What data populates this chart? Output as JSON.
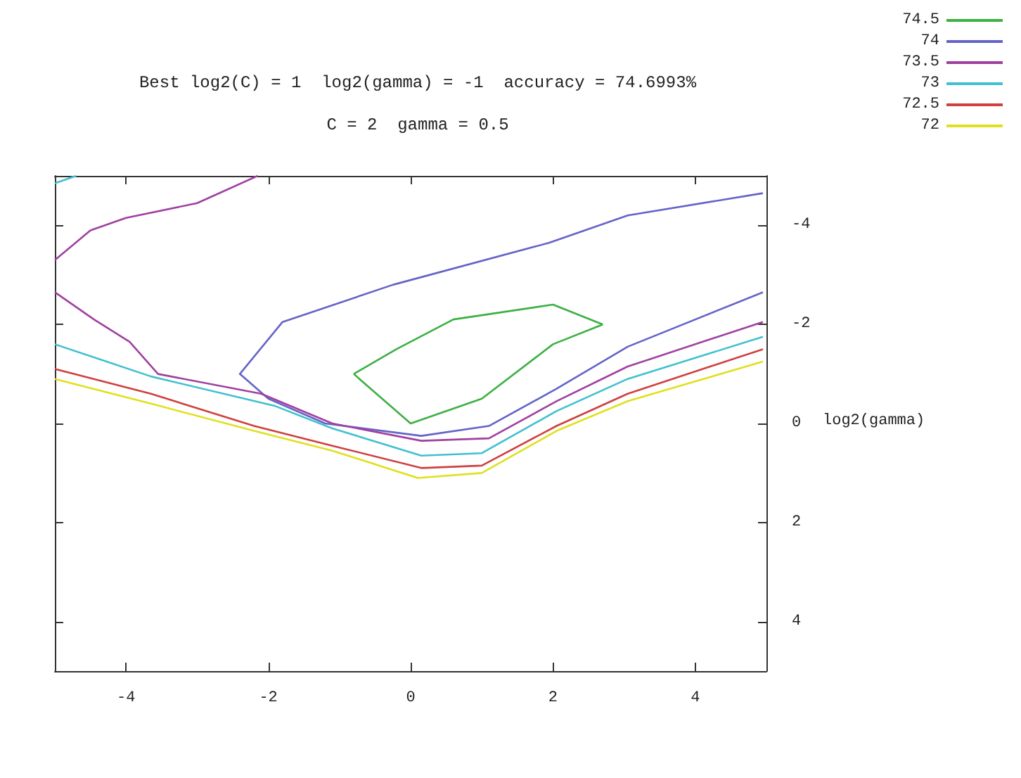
{
  "chart_data": {
    "type": "line",
    "title": "Best log2(C) = 1  log2(gamma) = -1  accuracy = 74.6993%",
    "subtitle": "C = 2  gamma = 0.5",
    "ylabel": "log2(gamma)",
    "xlim": [
      -5,
      5
    ],
    "xticks": [
      -4,
      -2,
      0,
      2,
      4
    ],
    "ylim": [
      5,
      -5
    ],
    "yticks": [
      -4,
      -2,
      0,
      2,
      4
    ],
    "grid": false,
    "legend": "top right",
    "marker": "none",
    "line_style": "solid",
    "series": [
      {
        "name": "74.5",
        "color": "#3cb043",
        "x": [
          -0.8,
          0,
          1,
          2,
          2.7,
          null,
          2.7,
          2,
          0.6,
          -0.2,
          -0.8
        ],
        "values": [
          -1,
          0,
          -0.5,
          -1.6,
          -2,
          null,
          -2,
          -2.4,
          -2.1,
          -1.5,
          -1
        ]
      },
      {
        "name": "74",
        "color": "#6464c8",
        "x": [
          4.95,
          3.05,
          1.95,
          -0.25,
          -1.8,
          -2.4,
          -2,
          -1.2,
          0.15,
          1.1,
          2.05,
          3.05,
          4.95
        ],
        "values": [
          -4.65,
          -4.2,
          -3.65,
          -2.8,
          -2.05,
          -1,
          -0.5,
          0,
          0.25,
          0.05,
          -0.7,
          -1.55,
          -2.65
        ]
      },
      {
        "name": "73.5",
        "color": "#a040a0",
        "x": [
          -5,
          -4.5,
          -4,
          -3,
          -2.15,
          null,
          -5,
          -4.45,
          -3.95,
          -3.55,
          -2.1,
          -1.1,
          0.15,
          1.1,
          2.05,
          3.05,
          4.95
        ],
        "values": [
          -3.3,
          -3.9,
          -4.15,
          -4.45,
          -5,
          null,
          -2.65,
          -2.1,
          -1.65,
          -1,
          -0.6,
          0,
          0.35,
          0.3,
          -0.45,
          -1.15,
          -2.05
        ]
      },
      {
        "name": "73",
        "color": "#40c0d0",
        "x": [
          -5,
          -4.7,
          null,
          -5,
          -3.65,
          -1.9,
          -1.1,
          0.15,
          1,
          2.05,
          3.05,
          4.95
        ],
        "values": [
          -4.85,
          -5,
          null,
          -1.6,
          -0.95,
          -0.35,
          0.1,
          0.65,
          0.6,
          -0.25,
          -0.9,
          -1.75
        ]
      },
      {
        "name": "72.5",
        "color": "#d04040",
        "x": [
          -5,
          -3.65,
          -2.2,
          -1.1,
          0.15,
          1,
          2.05,
          3.05,
          4.95
        ],
        "values": [
          -1.1,
          -0.6,
          0.05,
          0.45,
          0.9,
          0.85,
          0.05,
          -0.6,
          -1.5
        ]
      },
      {
        "name": "72",
        "color": "#e0e020",
        "x": [
          -5,
          -3.65,
          -2.2,
          -1.1,
          0.1,
          1,
          2.05,
          3.05,
          4.95
        ],
        "values": [
          -0.9,
          -0.4,
          0.15,
          0.55,
          1.1,
          1.0,
          0.15,
          -0.45,
          -1.25
        ]
      }
    ]
  }
}
